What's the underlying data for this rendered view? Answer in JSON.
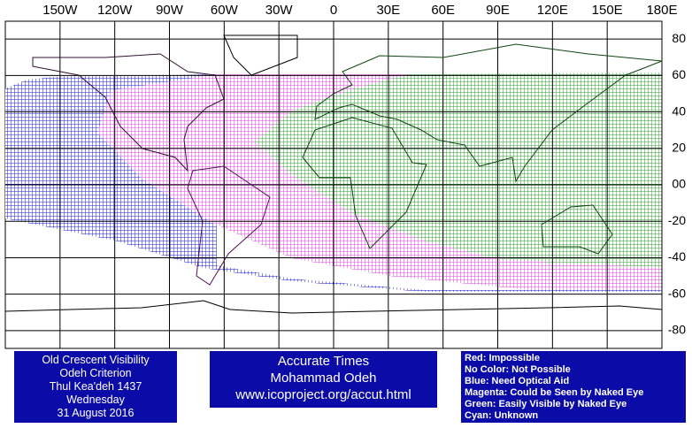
{
  "map": {
    "lon_labels": [
      {
        "value": -150,
        "label": "150W"
      },
      {
        "value": -120,
        "label": "120W"
      },
      {
        "value": -90,
        "label": "90W"
      },
      {
        "value": -60,
        "label": "60W"
      },
      {
        "value": -30,
        "label": "30W"
      },
      0,
      {
        "value": 30,
        "label": "30E"
      },
      {
        "value": 60,
        "label": "60E"
      },
      {
        "value": 90,
        "label": "90E"
      },
      {
        "value": 120,
        "label": "120E"
      },
      {
        "value": 150,
        "label": "150E"
      },
      {
        "value": 180,
        "label": "180E"
      }
    ],
    "lat_labels": [
      80,
      60,
      40,
      20,
      {
        "value": 0,
        "label": "00"
      },
      -20,
      -40,
      -60,
      -80
    ]
  },
  "info_box": {
    "lines": [
      "Old Crescent Visibility",
      "Odeh Criterion",
      "Thul Kea'deh 1437",
      "Wednesday",
      "31 August 2016"
    ]
  },
  "credit_box": {
    "lines": [
      "Accurate Times",
      "Mohammad Odeh",
      "www.icoproject.org/accut.html"
    ]
  },
  "legend_box": {
    "lines": [
      "Red: Impossible",
      "No Color: Not Possible",
      "Blue: Need Optical Aid",
      "Magenta: Could be Seen by Naked Eye",
      "Green: Easily Visible by Naked Eye",
      "Cyan: Unknown"
    ]
  }
}
